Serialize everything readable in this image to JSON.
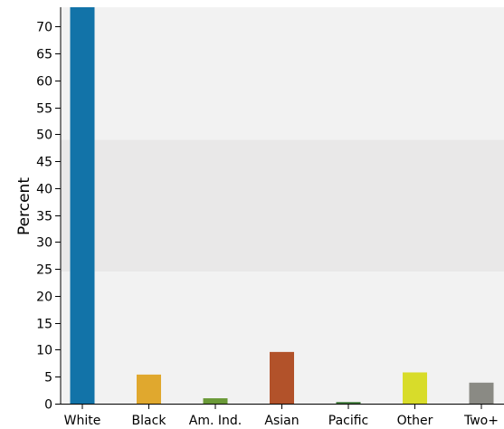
{
  "chart_data": {
    "type": "bar",
    "title": "",
    "xlabel": "",
    "ylabel": "Percent",
    "categories": [
      "White",
      "Black",
      "Am. Ind.",
      "Asian",
      "Pacific",
      "Other",
      "Two+"
    ],
    "values": [
      73.6,
      5.4,
      1.0,
      9.6,
      0.3,
      5.8,
      3.9
    ],
    "colors": [
      "#1273a8",
      "#e0a82e",
      "#6b9a38",
      "#b2522a",
      "#3f7a3a",
      "#d8dc2a",
      "#8a8a84"
    ],
    "ylim": [
      0,
      73.6
    ],
    "yticks": [
      0,
      5,
      10,
      15,
      20,
      25,
      30,
      35,
      40,
      45,
      50,
      55,
      60,
      65,
      70
    ],
    "background_bands": [
      {
        "from": 0,
        "to": 24.5,
        "color": "#f2f2f2"
      },
      {
        "from": 24.5,
        "to": 49,
        "color": "#e9e8e8"
      },
      {
        "from": 49,
        "to": 73.6,
        "color": "#f2f2f2"
      }
    ],
    "grid": false,
    "legend": "none"
  }
}
